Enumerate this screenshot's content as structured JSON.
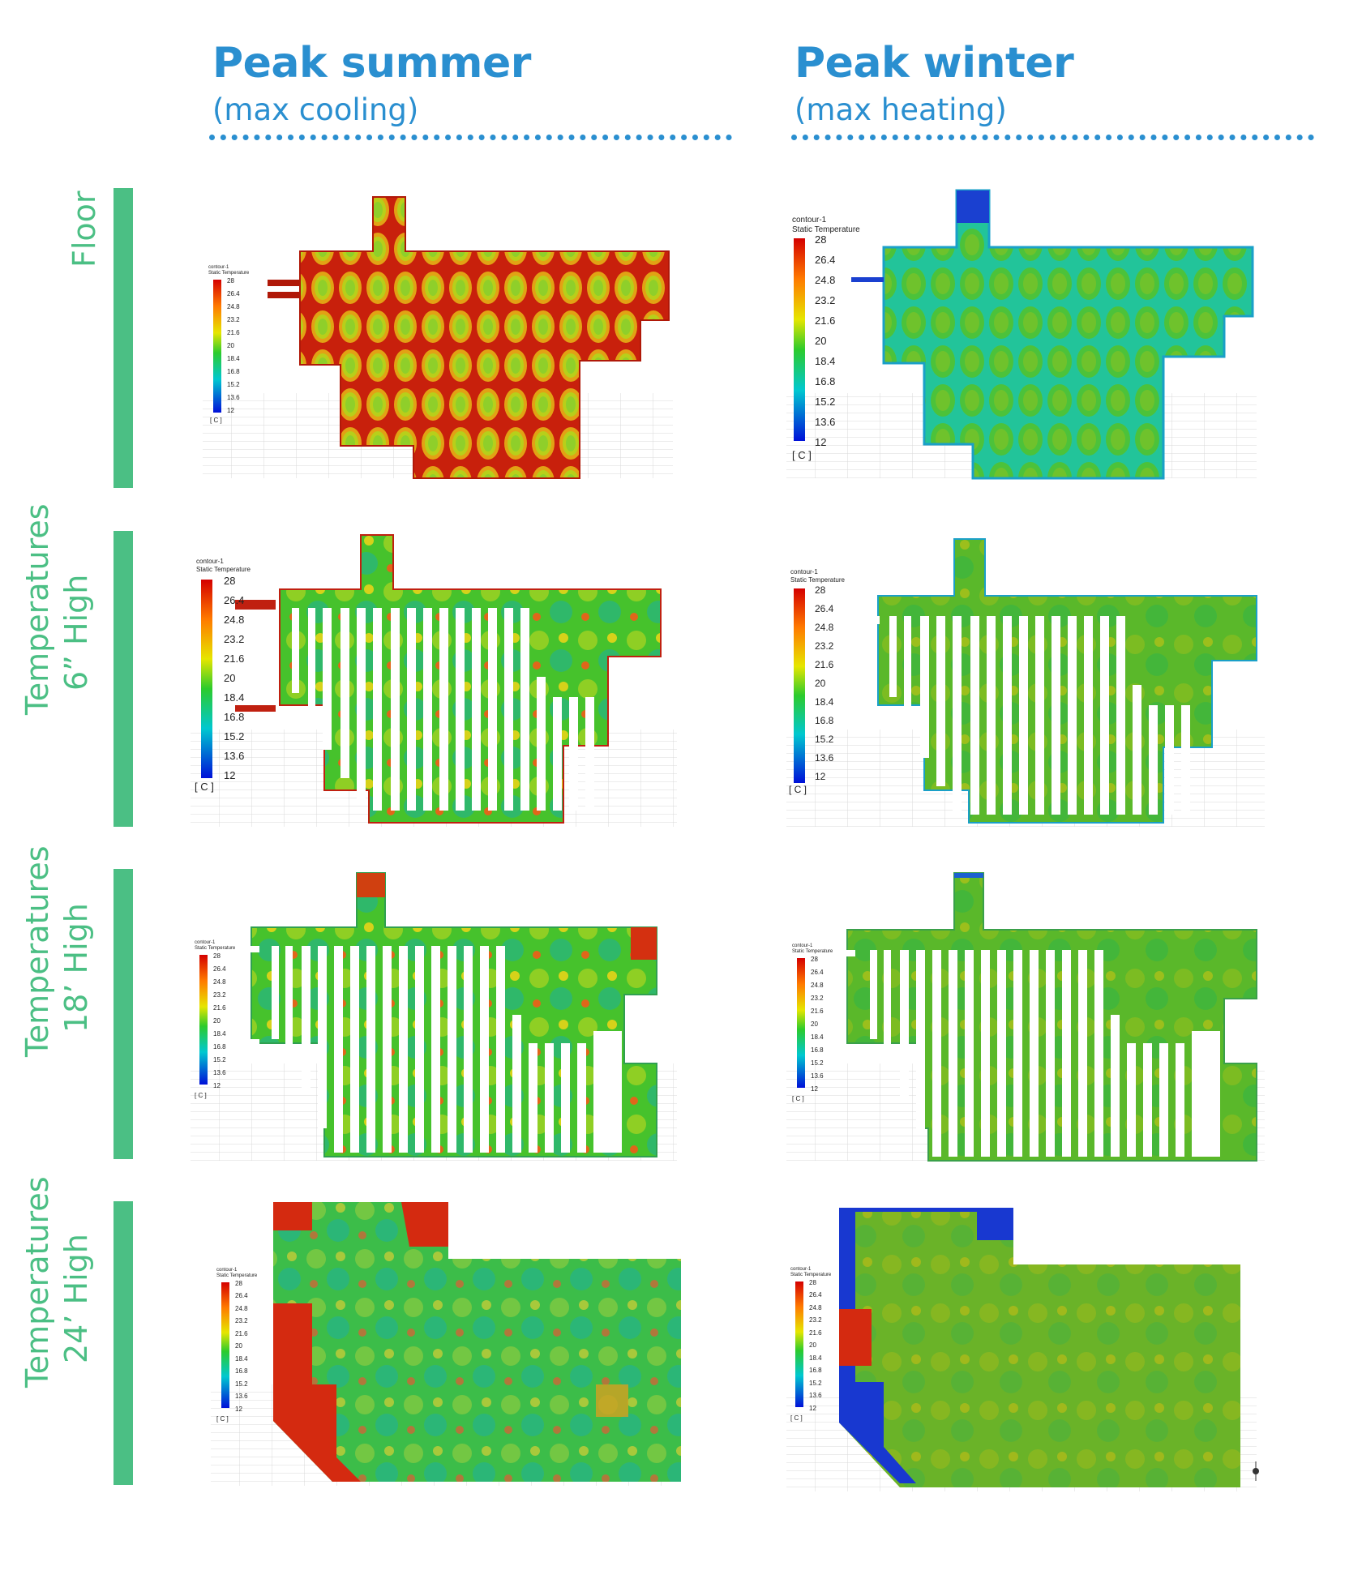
{
  "columns": [
    {
      "title": "Peak summer",
      "subtitle": "(max cooling)"
    },
    {
      "title": "Peak winter",
      "subtitle": "(max heating)"
    }
  ],
  "rows": [
    {
      "line1": "Floor",
      "line2": ""
    },
    {
      "line1": "Temperatures",
      "line2": "6” High"
    },
    {
      "line1": "Temperatures",
      "line2": "18’ High"
    },
    {
      "line1": "Temperatures",
      "line2": "24’ High"
    }
  ],
  "legend": {
    "name": "contour-1",
    "variable": "Static Temperature",
    "ticks": [
      "28",
      "26.4",
      "24.8",
      "23.2",
      "21.6",
      "20",
      "18.4",
      "16.8",
      "15.2",
      "13.6",
      "12"
    ],
    "unit": "[ C ]"
  },
  "colors": {
    "heading_blue": "#2a8fd0",
    "label_green": "#4bbf84",
    "hot": "#c41a0e",
    "warm": "#e9e515",
    "neutral": "#45c02c",
    "cool": "#1fb89c",
    "cold": "#1a32d6"
  }
}
